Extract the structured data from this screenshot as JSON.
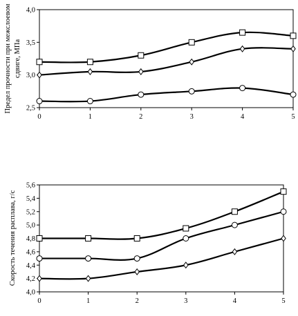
{
  "chart_data": [
    {
      "type": "line",
      "title": "",
      "xlabel": "",
      "ylabel": [
        "Предел прочности при межслоевом",
        "сдвиге, МПа"
      ],
      "x": [
        0,
        1,
        2,
        3,
        4,
        5
      ],
      "xlim": [
        0,
        5
      ],
      "ylim": [
        2.5,
        4.0
      ],
      "yticks": [
        "2,5",
        "3,0",
        "3,5",
        "4,0"
      ],
      "ytick_values": [
        2.5,
        3.0,
        3.5,
        4.0
      ],
      "xticks": [
        "0",
        "1",
        "2",
        "3",
        "4",
        "5"
      ],
      "grid": false,
      "series": [
        {
          "marker": "square",
          "values": [
            3.2,
            3.2,
            3.3,
            3.5,
            3.65,
            3.6
          ]
        },
        {
          "marker": "diamond",
          "values": [
            3.0,
            3.05,
            3.05,
            3.2,
            3.4,
            3.4
          ]
        },
        {
          "marker": "circle",
          "values": [
            2.6,
            2.6,
            2.7,
            2.75,
            2.8,
            2.7
          ]
        }
      ]
    },
    {
      "type": "line",
      "title": "",
      "xlabel": "",
      "ylabel": [
        "Скорость течения расплава, г/с"
      ],
      "x": [
        0,
        1,
        2,
        3,
        4,
        5
      ],
      "xlim": [
        0,
        5
      ],
      "ylim": [
        4.0,
        5.6
      ],
      "yticks": [
        "4,0",
        "4,2",
        "4,4",
        "4,6",
        "4,8",
        "5,0",
        "5,2",
        "5,4",
        "5,6"
      ],
      "ytick_values": [
        4.0,
        4.2,
        4.4,
        4.6,
        4.8,
        5.0,
        5.2,
        5.4,
        5.6
      ],
      "xticks": [
        "0",
        "1",
        "2",
        "3",
        "4",
        "5"
      ],
      "grid": false,
      "series": [
        {
          "marker": "square",
          "values": [
            4.8,
            4.8,
            4.8,
            4.95,
            5.2,
            5.5
          ]
        },
        {
          "marker": "circle",
          "values": [
            4.5,
            4.5,
            4.5,
            4.8,
            5.0,
            5.2
          ]
        },
        {
          "marker": "diamond",
          "values": [
            4.2,
            4.2,
            4.3,
            4.4,
            4.6,
            4.8
          ]
        }
      ]
    }
  ]
}
